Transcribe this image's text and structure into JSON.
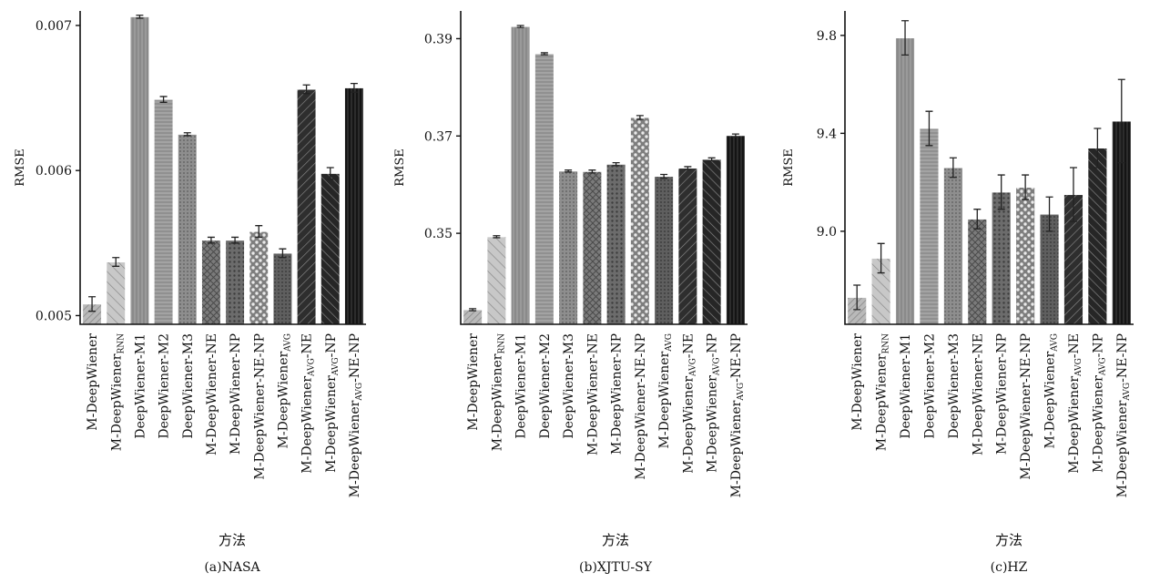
{
  "chart_data": [
    {
      "type": "bar",
      "caption": "(a)NASA",
      "xlabel": "方法",
      "ylabel": "RMSE",
      "ylim": [
        0.00494,
        0.0071
      ],
      "yticks": [
        0.005,
        0.006,
        0.007
      ],
      "ytick_labels": [
        "0.005",
        "0.006",
        "0.007"
      ],
      "categories": [
        {
          "base": "M-DeepWiener",
          "sub": "",
          "suffix": ""
        },
        {
          "base": "M-DeepWiener",
          "sub": "RNN",
          "suffix": ""
        },
        {
          "base": "DeepWiener-M1",
          "sub": "",
          "suffix": ""
        },
        {
          "base": "DeepWiener-M2",
          "sub": "",
          "suffix": ""
        },
        {
          "base": "DeepWiener-M3",
          "sub": "",
          "suffix": ""
        },
        {
          "base": "M-DeepWiener-NE",
          "sub": "",
          "suffix": ""
        },
        {
          "base": "M-DeepWiener-NP",
          "sub": "",
          "suffix": ""
        },
        {
          "base": "M-DeepWiener-NE-NP",
          "sub": "",
          "suffix": ""
        },
        {
          "base": "M-DeepWiener",
          "sub": "AVG",
          "suffix": ""
        },
        {
          "base": "M-DeepWiener",
          "sub": "AVG",
          "suffix": "-NE"
        },
        {
          "base": "M-DeepWiener",
          "sub": "AVG",
          "suffix": "-NP"
        },
        {
          "base": "M-DeepWiener",
          "sub": "AVG",
          "suffix": "-NE-NP"
        }
      ],
      "values": [
        0.00508,
        0.00537,
        0.00706,
        0.00649,
        0.00625,
        0.00552,
        0.00552,
        0.00558,
        0.00543,
        0.00656,
        0.00598,
        0.00657
      ],
      "errors": [
        5e-05,
        3e-05,
        1e-05,
        2e-05,
        1e-05,
        2e-05,
        2e-05,
        4e-05,
        3e-05,
        3e-05,
        4e-05,
        3e-05
      ]
    },
    {
      "type": "bar",
      "caption": "(b)XJTU-SY",
      "xlabel": "方法",
      "ylabel": "RMSE",
      "ylim": [
        0.3313,
        0.3957
      ],
      "yticks": [
        0.35,
        0.37,
        0.39
      ],
      "ytick_labels": [
        "0.35",
        "0.37",
        "0.39"
      ],
      "categories": [
        {
          "base": "M-DeepWiener",
          "sub": "",
          "suffix": ""
        },
        {
          "base": "M-DeepWiener",
          "sub": "RNN",
          "suffix": ""
        },
        {
          "base": "DeepWiener-M1",
          "sub": "",
          "suffix": ""
        },
        {
          "base": "DeepWiener-M2",
          "sub": "",
          "suffix": ""
        },
        {
          "base": "DeepWiener-M3",
          "sub": "",
          "suffix": ""
        },
        {
          "base": "M-DeepWiener-NE",
          "sub": "",
          "suffix": ""
        },
        {
          "base": "M-DeepWiener-NP",
          "sub": "",
          "suffix": ""
        },
        {
          "base": "M-DeepWiener-NE-NP",
          "sub": "",
          "suffix": ""
        },
        {
          "base": "M-DeepWiener",
          "sub": "AVG",
          "suffix": ""
        },
        {
          "base": "M-DeepWiener",
          "sub": "AVG",
          "suffix": "-NE"
        },
        {
          "base": "M-DeepWiener",
          "sub": "AVG",
          "suffix": "-NP"
        },
        {
          "base": "M-DeepWiener",
          "sub": "AVG",
          "suffix": "-NE-NP"
        }
      ],
      "values": [
        0.3343,
        0.3493,
        0.3925,
        0.3869,
        0.3628,
        0.3627,
        0.3642,
        0.3738,
        0.3617,
        0.3634,
        0.3652,
        0.3701
      ],
      "errors": [
        0.0002,
        0.0002,
        0.0002,
        0.0002,
        0.0002,
        0.0003,
        0.0003,
        0.0004,
        0.0004,
        0.0003,
        0.0003,
        0.0003
      ]
    },
    {
      "type": "bar",
      "caption": "(c)HZ",
      "xlabel": "方法",
      "ylabel": "RMSE",
      "ylim": [
        8.62,
        9.9
      ],
      "yticks": [
        9.0,
        9.4,
        9.8
      ],
      "ytick_labels": [
        "9.0",
        "9.4",
        "9.8"
      ],
      "categories": [
        {
          "base": "M-DeepWiener",
          "sub": "",
          "suffix": ""
        },
        {
          "base": "M-DeepWiener",
          "sub": "RNN",
          "suffix": ""
        },
        {
          "base": "DeepWiener-M1",
          "sub": "",
          "suffix": ""
        },
        {
          "base": "DeepWiener-M2",
          "sub": "",
          "suffix": ""
        },
        {
          "base": "DeepWiener-M3",
          "sub": "",
          "suffix": ""
        },
        {
          "base": "M-DeepWiener-NE",
          "sub": "",
          "suffix": ""
        },
        {
          "base": "M-DeepWiener-NP",
          "sub": "",
          "suffix": ""
        },
        {
          "base": "M-DeepWiener-NE-NP",
          "sub": "",
          "suffix": ""
        },
        {
          "base": "M-DeepWiener",
          "sub": "AVG",
          "suffix": ""
        },
        {
          "base": "M-DeepWiener",
          "sub": "AVG",
          "suffix": "-NE"
        },
        {
          "base": "M-DeepWiener",
          "sub": "AVG",
          "suffix": "-NP"
        },
        {
          "base": "M-DeepWiener",
          "sub": "AVG",
          "suffix": "-NE-NP"
        }
      ],
      "values": [
        8.73,
        8.89,
        9.79,
        9.42,
        9.26,
        9.05,
        9.16,
        9.18,
        9.07,
        9.15,
        9.34,
        9.45
      ],
      "errors": [
        0.05,
        0.06,
        0.07,
        0.07,
        0.04,
        0.04,
        0.07,
        0.05,
        0.07,
        0.11,
        0.08,
        0.17
      ]
    }
  ]
}
